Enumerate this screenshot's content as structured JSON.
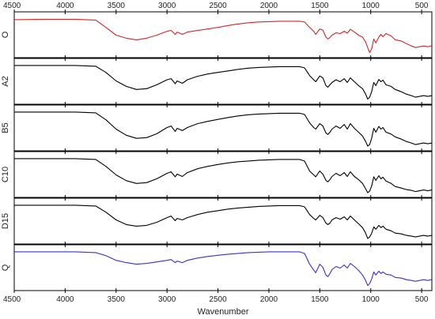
{
  "chart_data": {
    "type": "line",
    "title": "",
    "xlabel": "Wavenumber",
    "ylabel": "",
    "xlim": [
      4500,
      400
    ],
    "x_reversed": true,
    "xticks": [
      4500,
      4000,
      3500,
      3000,
      2500,
      2000,
      1500,
      1000,
      500
    ],
    "grid": false,
    "legend": "none",
    "series": [
      {
        "name": "O",
        "color": "#d62728",
        "x": [
          4500,
          4200,
          3900,
          3700,
          3600,
          3500,
          3400,
          3300,
          3200,
          3100,
          3000,
          2960,
          2920,
          2900,
          2850,
          2800,
          2700,
          2600,
          2500,
          2400,
          2300,
          2200,
          2100,
          2000,
          1900,
          1800,
          1700,
          1650,
          1600,
          1560,
          1540,
          1500,
          1470,
          1440,
          1420,
          1400,
          1380,
          1340,
          1300,
          1260,
          1230,
          1200,
          1160,
          1120,
          1080,
          1050,
          1030,
          1010,
          990,
          970,
          950,
          920,
          900,
          880,
          850,
          800,
          760,
          700,
          650,
          600,
          560,
          520,
          480,
          440,
          400
        ],
        "y": [
          0.9,
          0.91,
          0.91,
          0.89,
          0.7,
          0.5,
          0.42,
          0.38,
          0.42,
          0.5,
          0.6,
          0.62,
          0.52,
          0.58,
          0.52,
          0.58,
          0.62,
          0.66,
          0.7,
          0.75,
          0.79,
          0.82,
          0.84,
          0.85,
          0.86,
          0.86,
          0.86,
          0.84,
          0.7,
          0.6,
          0.52,
          0.66,
          0.63,
          0.45,
          0.4,
          0.44,
          0.5,
          0.56,
          0.54,
          0.6,
          0.55,
          0.65,
          0.58,
          0.5,
          0.45,
          0.32,
          0.18,
          0.05,
          0.15,
          0.4,
          0.3,
          0.45,
          0.52,
          0.46,
          0.54,
          0.48,
          0.38,
          0.35,
          0.28,
          0.22,
          0.18,
          0.2,
          0.22,
          0.2,
          0.22
        ]
      },
      {
        "name": "A2",
        "color": "#000000",
        "x": [
          4500,
          4200,
          3900,
          3700,
          3600,
          3500,
          3400,
          3300,
          3200,
          3100,
          3000,
          2960,
          2920,
          2900,
          2850,
          2800,
          2700,
          2600,
          2500,
          2400,
          2300,
          2200,
          2100,
          2000,
          1900,
          1800,
          1700,
          1650,
          1600,
          1560,
          1540,
          1500,
          1470,
          1440,
          1420,
          1400,
          1380,
          1340,
          1300,
          1260,
          1230,
          1200,
          1160,
          1120,
          1080,
          1050,
          1030,
          1010,
          990,
          970,
          950,
          920,
          900,
          880,
          850,
          800,
          760,
          700,
          650,
          600,
          560,
          520,
          480,
          440,
          400
        ],
        "y": [
          0.92,
          0.92,
          0.92,
          0.9,
          0.74,
          0.52,
          0.38,
          0.3,
          0.32,
          0.42,
          0.55,
          0.58,
          0.45,
          0.52,
          0.46,
          0.55,
          0.64,
          0.7,
          0.74,
          0.78,
          0.82,
          0.85,
          0.87,
          0.88,
          0.89,
          0.89,
          0.89,
          0.86,
          0.66,
          0.55,
          0.5,
          0.65,
          0.6,
          0.4,
          0.36,
          0.42,
          0.48,
          0.55,
          0.5,
          0.58,
          0.48,
          0.6,
          0.5,
          0.4,
          0.32,
          0.18,
          0.05,
          0.1,
          0.25,
          0.48,
          0.4,
          0.56,
          0.5,
          0.54,
          0.42,
          0.38,
          0.3,
          0.24,
          0.18,
          0.14,
          0.1,
          0.12,
          0.14,
          0.12,
          0.14
        ]
      },
      {
        "name": "B5",
        "color": "#000000",
        "x": [
          4500,
          4200,
          3900,
          3700,
          3600,
          3500,
          3400,
          3300,
          3200,
          3100,
          3000,
          2960,
          2920,
          2900,
          2850,
          2800,
          2700,
          2600,
          2500,
          2400,
          2300,
          2200,
          2100,
          2000,
          1900,
          1800,
          1700,
          1650,
          1600,
          1560,
          1540,
          1500,
          1470,
          1440,
          1420,
          1400,
          1380,
          1340,
          1300,
          1260,
          1230,
          1200,
          1160,
          1120,
          1080,
          1050,
          1030,
          1010,
          990,
          970,
          950,
          920,
          900,
          880,
          850,
          800,
          760,
          700,
          650,
          600,
          560,
          520,
          480,
          440,
          400
        ],
        "y": [
          0.92,
          0.92,
          0.92,
          0.9,
          0.72,
          0.48,
          0.32,
          0.24,
          0.26,
          0.36,
          0.52,
          0.56,
          0.42,
          0.5,
          0.44,
          0.52,
          0.62,
          0.68,
          0.73,
          0.78,
          0.82,
          0.85,
          0.87,
          0.88,
          0.89,
          0.89,
          0.89,
          0.86,
          0.64,
          0.52,
          0.48,
          0.62,
          0.56,
          0.38,
          0.34,
          0.4,
          0.48,
          0.56,
          0.5,
          0.6,
          0.48,
          0.62,
          0.5,
          0.4,
          0.3,
          0.16,
          0.04,
          0.08,
          0.25,
          0.5,
          0.4,
          0.55,
          0.48,
          0.52,
          0.4,
          0.35,
          0.28,
          0.22,
          0.16,
          0.12,
          0.08,
          0.1,
          0.12,
          0.1,
          0.12
        ]
      },
      {
        "name": "C10",
        "color": "#000000",
        "x": [
          4500,
          4200,
          3900,
          3700,
          3600,
          3500,
          3400,
          3300,
          3200,
          3100,
          3000,
          2960,
          2920,
          2900,
          2850,
          2800,
          2700,
          2600,
          2500,
          2400,
          2300,
          2200,
          2100,
          2000,
          1900,
          1800,
          1700,
          1650,
          1600,
          1560,
          1540,
          1500,
          1470,
          1440,
          1420,
          1400,
          1380,
          1340,
          1300,
          1260,
          1230,
          1200,
          1160,
          1120,
          1080,
          1050,
          1030,
          1010,
          990,
          970,
          950,
          920,
          900,
          880,
          850,
          800,
          760,
          700,
          650,
          600,
          560,
          520,
          480,
          440,
          400
        ],
        "y": [
          0.92,
          0.92,
          0.92,
          0.9,
          0.72,
          0.5,
          0.35,
          0.28,
          0.3,
          0.4,
          0.54,
          0.58,
          0.45,
          0.52,
          0.46,
          0.56,
          0.66,
          0.72,
          0.77,
          0.81,
          0.84,
          0.86,
          0.88,
          0.89,
          0.9,
          0.9,
          0.9,
          0.86,
          0.6,
          0.5,
          0.45,
          0.6,
          0.52,
          0.36,
          0.32,
          0.38,
          0.46,
          0.54,
          0.48,
          0.56,
          0.46,
          0.58,
          0.46,
          0.38,
          0.28,
          0.14,
          0.04,
          0.08,
          0.22,
          0.45,
          0.36,
          0.48,
          0.4,
          0.44,
          0.34,
          0.28,
          0.2,
          0.16,
          0.12,
          0.1,
          0.07,
          0.09,
          0.11,
          0.09,
          0.11
        ]
      },
      {
        "name": "D15",
        "color": "#000000",
        "x": [
          4500,
          4200,
          3900,
          3700,
          3600,
          3500,
          3400,
          3300,
          3200,
          3100,
          3000,
          2960,
          2920,
          2900,
          2850,
          2800,
          2700,
          2600,
          2500,
          2400,
          2300,
          2200,
          2100,
          2000,
          1900,
          1800,
          1700,
          1650,
          1600,
          1560,
          1540,
          1500,
          1470,
          1440,
          1420,
          1400,
          1380,
          1340,
          1300,
          1260,
          1230,
          1200,
          1160,
          1120,
          1080,
          1050,
          1030,
          1010,
          990,
          970,
          950,
          920,
          900,
          880,
          850,
          800,
          760,
          700,
          650,
          600,
          560,
          520,
          480,
          440,
          400
        ],
        "y": [
          0.92,
          0.92,
          0.92,
          0.9,
          0.74,
          0.54,
          0.42,
          0.38,
          0.4,
          0.48,
          0.6,
          0.64,
          0.52,
          0.58,
          0.54,
          0.6,
          0.68,
          0.74,
          0.78,
          0.82,
          0.85,
          0.87,
          0.89,
          0.9,
          0.91,
          0.91,
          0.91,
          0.88,
          0.68,
          0.58,
          0.54,
          0.66,
          0.6,
          0.46,
          0.42,
          0.46,
          0.54,
          0.6,
          0.56,
          0.62,
          0.54,
          0.64,
          0.54,
          0.44,
          0.34,
          0.2,
          0.06,
          0.1,
          0.2,
          0.36,
          0.3,
          0.4,
          0.34,
          0.38,
          0.3,
          0.26,
          0.2,
          0.18,
          0.14,
          0.12,
          0.1,
          0.12,
          0.14,
          0.12,
          0.14
        ]
      },
      {
        "name": "Q",
        "color": "#3b2fd6",
        "x": [
          4500,
          4200,
          3900,
          3700,
          3600,
          3500,
          3400,
          3300,
          3200,
          3100,
          3000,
          2960,
          2920,
          2900,
          2850,
          2800,
          2700,
          2600,
          2500,
          2400,
          2300,
          2200,
          2100,
          2000,
          1900,
          1800,
          1700,
          1650,
          1600,
          1560,
          1540,
          1500,
          1470,
          1440,
          1420,
          1400,
          1380,
          1340,
          1300,
          1260,
          1230,
          1200,
          1160,
          1120,
          1080,
          1050,
          1030,
          1010,
          990,
          970,
          950,
          920,
          900,
          880,
          850,
          800,
          760,
          700,
          650,
          600,
          560,
          520,
          480,
          440,
          400
        ],
        "y": [
          0.92,
          0.92,
          0.92,
          0.9,
          0.82,
          0.7,
          0.64,
          0.6,
          0.62,
          0.66,
          0.7,
          0.72,
          0.64,
          0.68,
          0.64,
          0.7,
          0.76,
          0.8,
          0.83,
          0.86,
          0.88,
          0.9,
          0.91,
          0.92,
          0.92,
          0.92,
          0.92,
          0.88,
          0.6,
          0.45,
          0.38,
          0.6,
          0.52,
          0.32,
          0.28,
          0.36,
          0.46,
          0.54,
          0.5,
          0.58,
          0.5,
          0.62,
          0.54,
          0.44,
          0.32,
          0.18,
          0.05,
          0.1,
          0.22,
          0.4,
          0.32,
          0.42,
          0.36,
          0.4,
          0.34,
          0.32,
          0.26,
          0.24,
          0.2,
          0.18,
          0.16,
          0.18,
          0.2,
          0.18,
          0.2
        ]
      }
    ]
  }
}
